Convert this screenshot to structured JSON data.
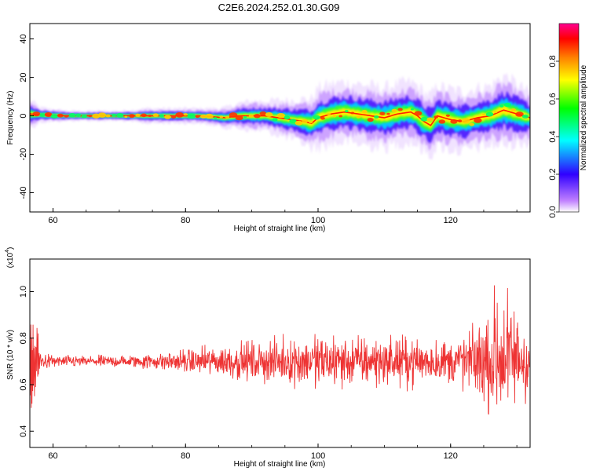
{
  "chart_data": [
    {
      "type": "heatmap",
      "title": "C2E6.2024.252.01.30.G09",
      "xlabel": "Height of straight line (km)",
      "ylabel": "Frequency (Hz)",
      "xlim": [
        56.5,
        132
      ],
      "ylim": [
        -50,
        48
      ],
      "xticks": [
        "60",
        "80",
        "100",
        "120"
      ],
      "yticks": [
        "-40",
        "-20",
        "0",
        "20",
        "40"
      ],
      "colorbar": {
        "label": "Normalized spectral amplitude",
        "range": [
          0,
          1
        ],
        "ticks": [
          "0.0",
          "0.2",
          "0.4",
          "0.6",
          "0.8"
        ],
        "colors": [
          "#ffffff",
          "#8000ff",
          "#0000ff",
          "#00ffff",
          "#00ff00",
          "#ffff00",
          "#ff8000",
          "#ff0000",
          "#ff00a0"
        ]
      },
      "ridge": {
        "x": [
          56.5,
          58,
          62,
          66,
          70,
          74,
          78,
          82,
          86,
          88,
          90,
          92,
          94,
          96,
          98,
          99,
          100,
          101,
          102,
          104,
          106,
          108,
          110,
          112,
          114,
          115,
          116,
          117,
          118,
          120,
          122,
          124,
          126,
          128,
          130,
          132
        ],
        "f": [
          1,
          0.5,
          0,
          0,
          0,
          0,
          0,
          0,
          -1,
          0,
          0,
          0,
          -1,
          -2,
          -3,
          -4,
          -1,
          0,
          1,
          2,
          1,
          0,
          -1,
          1,
          2,
          0,
          -3,
          -5,
          0,
          -2,
          -3,
          -1,
          0,
          3,
          1,
          -1
        ],
        "width": [
          3,
          1.5,
          1,
          1,
          1,
          1.5,
          1.5,
          1.5,
          2,
          2.5,
          3,
          3,
          3.5,
          4,
          4.5,
          5,
          6,
          6,
          6,
          6,
          6,
          6,
          6,
          6,
          6,
          6,
          6,
          6,
          6,
          6,
          6,
          6,
          6,
          7,
          6,
          5
        ]
      }
    },
    {
      "type": "line",
      "xlabel": "Height of straight line (km)",
      "ylabel": "SNR (10 * v/v)",
      "ymultiplier": "(x10",
      "ymultiplier_exp": "4",
      "ymultiplier_close": ")",
      "xlim": [
        56.5,
        132
      ],
      "ylim": [
        0.33,
        1.14
      ],
      "xticks": [
        "60",
        "80",
        "100",
        "120"
      ],
      "yticks": [
        "0.4",
        "0.6",
        "0.8",
        "1.0"
      ],
      "color": "#ee3333",
      "envelope": {
        "x": [
          56.5,
          57.5,
          58,
          60,
          65,
          70,
          75,
          80,
          85,
          90,
          95,
          100,
          105,
          110,
          115,
          120,
          125,
          127,
          129,
          132
        ],
        "mean": [
          0.7,
          0.7,
          0.7,
          0.7,
          0.7,
          0.7,
          0.7,
          0.7,
          0.7,
          0.7,
          0.7,
          0.7,
          0.7,
          0.7,
          0.7,
          0.7,
          0.7,
          0.72,
          0.72,
          0.7
        ],
        "amp": [
          0.28,
          0.25,
          0.05,
          0.03,
          0.03,
          0.03,
          0.04,
          0.06,
          0.08,
          0.1,
          0.11,
          0.14,
          0.13,
          0.12,
          0.12,
          0.11,
          0.2,
          0.38,
          0.28,
          0.2
        ]
      }
    }
  ]
}
